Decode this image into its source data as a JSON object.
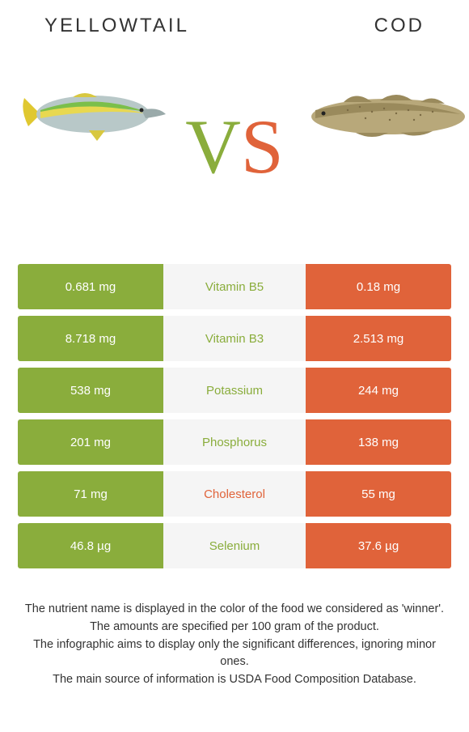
{
  "header": {
    "left": "YELLOWTAIL",
    "right": "COD"
  },
  "vs": {
    "v": "V",
    "s": "S"
  },
  "colors": {
    "left_bg": "#8aad3c",
    "right_bg": "#e0633a",
    "mid_bg": "#f5f5f5",
    "nutrient_left_color": "#8aad3c",
    "nutrient_right_color": "#e0633a",
    "cell_text": "#ffffff"
  },
  "rows": [
    {
      "left": "0.681 mg",
      "label": "Vitamin B5",
      "right": "0.18 mg",
      "winner": "left"
    },
    {
      "left": "8.718 mg",
      "label": "Vitamin B3",
      "right": "2.513 mg",
      "winner": "left"
    },
    {
      "left": "538 mg",
      "label": "Potassium",
      "right": "244 mg",
      "winner": "left"
    },
    {
      "left": "201 mg",
      "label": "Phosphorus",
      "right": "138 mg",
      "winner": "left"
    },
    {
      "left": "71 mg",
      "label": "Cholesterol",
      "right": "55 mg",
      "winner": "right"
    },
    {
      "left": "46.8 µg",
      "label": "Selenium",
      "right": "37.6 µg",
      "winner": "left"
    }
  ],
  "footer": {
    "l1": "The nutrient name is displayed in the color of the food we considered as 'winner'.",
    "l2": "The amounts are specified per 100 gram of the product.",
    "l3": "The infographic aims to display only the significant differences, ignoring minor ones.",
    "l4": "The main source of information is USDA Food Composition Database."
  }
}
